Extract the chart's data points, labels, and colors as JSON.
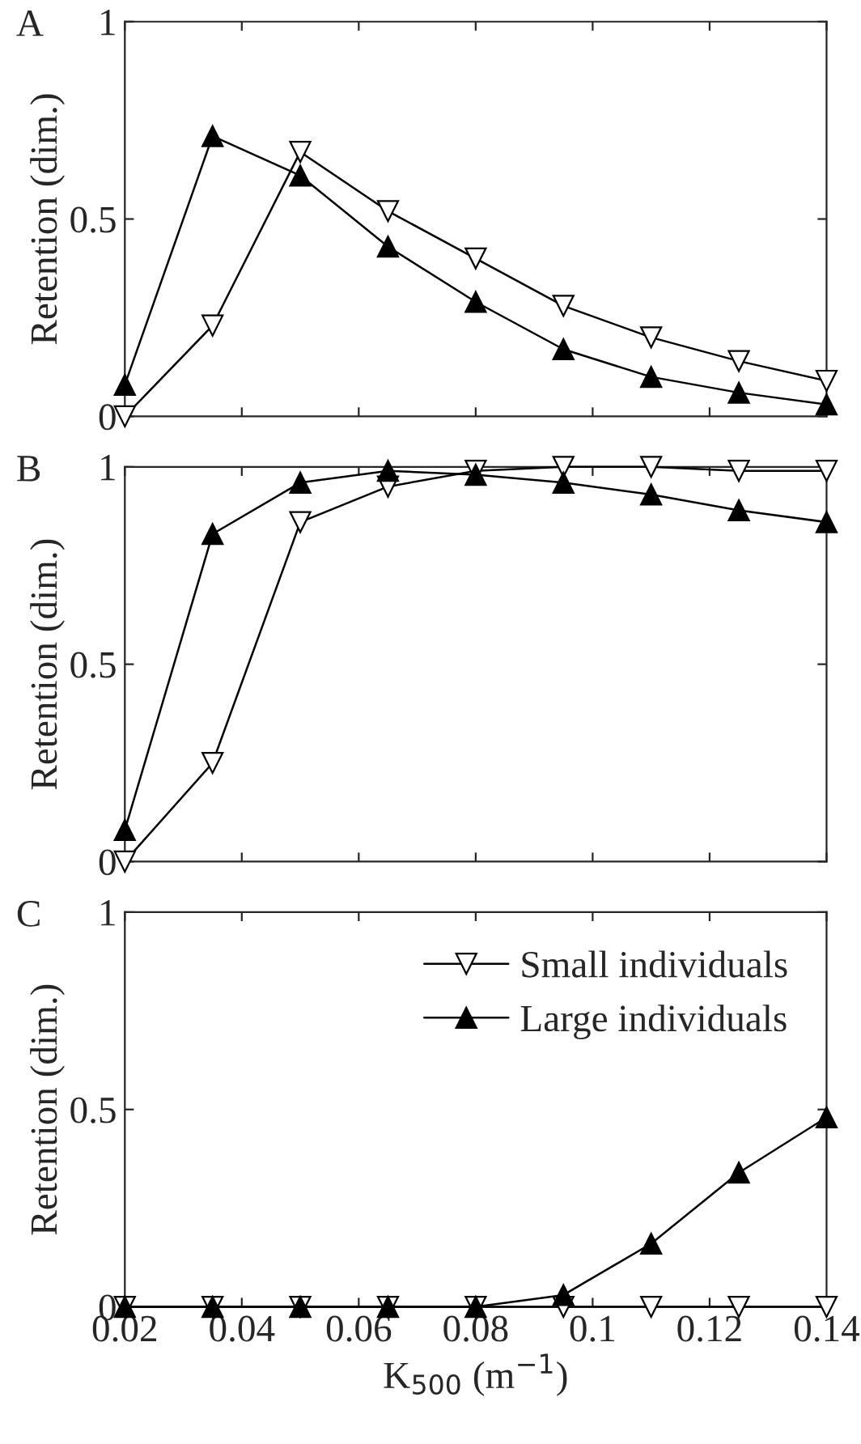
{
  "chart_data": [
    {
      "type": "line",
      "title": "A",
      "ylabel": "Retention (dim.)",
      "x": [
        0.02,
        0.035,
        0.05,
        0.065,
        0.08,
        0.095,
        0.11,
        0.125,
        0.14
      ],
      "xlim": [
        0.02,
        0.14
      ],
      "ylim": [
        0,
        1
      ],
      "xticks": [
        0.02,
        0.04,
        0.06,
        0.08,
        0.1,
        0.12,
        0.14
      ],
      "yticks": [
        0,
        0.5,
        1
      ],
      "tick_labels": "y",
      "grid": false,
      "legend": false,
      "series": [
        {
          "color": "#ffffff",
          "marker": "triangle_down",
          "values": [
            0,
            0.23,
            0.67,
            0.52,
            0.4,
            0.28,
            0.2,
            0.14,
            0.09
          ]
        },
        {
          "color": "#000000",
          "marker": "triangle",
          "values": [
            0.08,
            0.71,
            0.61,
            0.43,
            0.29,
            0.17,
            0.1,
            0.06,
            0.03
          ]
        }
      ]
    },
    {
      "type": "line",
      "title": "B",
      "ylabel": "Retention (dim.)",
      "x": [
        0.02,
        0.035,
        0.05,
        0.065,
        0.08,
        0.095,
        0.11,
        0.125,
        0.14
      ],
      "xlim": [
        0.02,
        0.14
      ],
      "ylim": [
        0,
        1
      ],
      "xticks": [
        0.02,
        0.04,
        0.06,
        0.08,
        0.1,
        0.12,
        0.14
      ],
      "yticks": [
        0,
        0.5,
        1
      ],
      "tick_labels": "y",
      "grid": false,
      "legend": false,
      "series": [
        {
          "color": "#ffffff",
          "marker": "triangle_down",
          "values": [
            0,
            0.25,
            0.86,
            0.95,
            0.99,
            1.0,
            1.0,
            0.99,
            0.99
          ]
        },
        {
          "color": "#000000",
          "marker": "triangle",
          "values": [
            0.08,
            0.83,
            0.96,
            0.99,
            0.98,
            0.96,
            0.93,
            0.89,
            0.86
          ]
        }
      ]
    },
    {
      "type": "line",
      "title": "C",
      "xlabel": "K$_{500}$ (m$^{−1}$)",
      "ylabel": "Retention (dim.)",
      "x": [
        0.02,
        0.035,
        0.05,
        0.065,
        0.08,
        0.095,
        0.11,
        0.125,
        0.14
      ],
      "xlim": [
        0.02,
        0.14
      ],
      "ylim": [
        0,
        1
      ],
      "xticks": [
        0.02,
        0.04,
        0.06,
        0.08,
        0.1,
        0.12,
        0.14
      ],
      "yticks": [
        0,
        0.5,
        1
      ],
      "grid": false,
      "legend": "top right",
      "series": [
        {
          "name": "Small individuals",
          "color": "#ffffff",
          "marker": "triangle_down",
          "values": [
            0,
            0,
            0,
            0,
            0,
            0,
            0,
            0,
            0
          ]
        },
        {
          "name": "Large individuals",
          "color": "#000000",
          "marker": "triangle",
          "values": [
            0,
            0,
            0,
            0,
            0,
            0.03,
            0.16,
            0.34,
            0.48
          ]
        }
      ]
    }
  ]
}
